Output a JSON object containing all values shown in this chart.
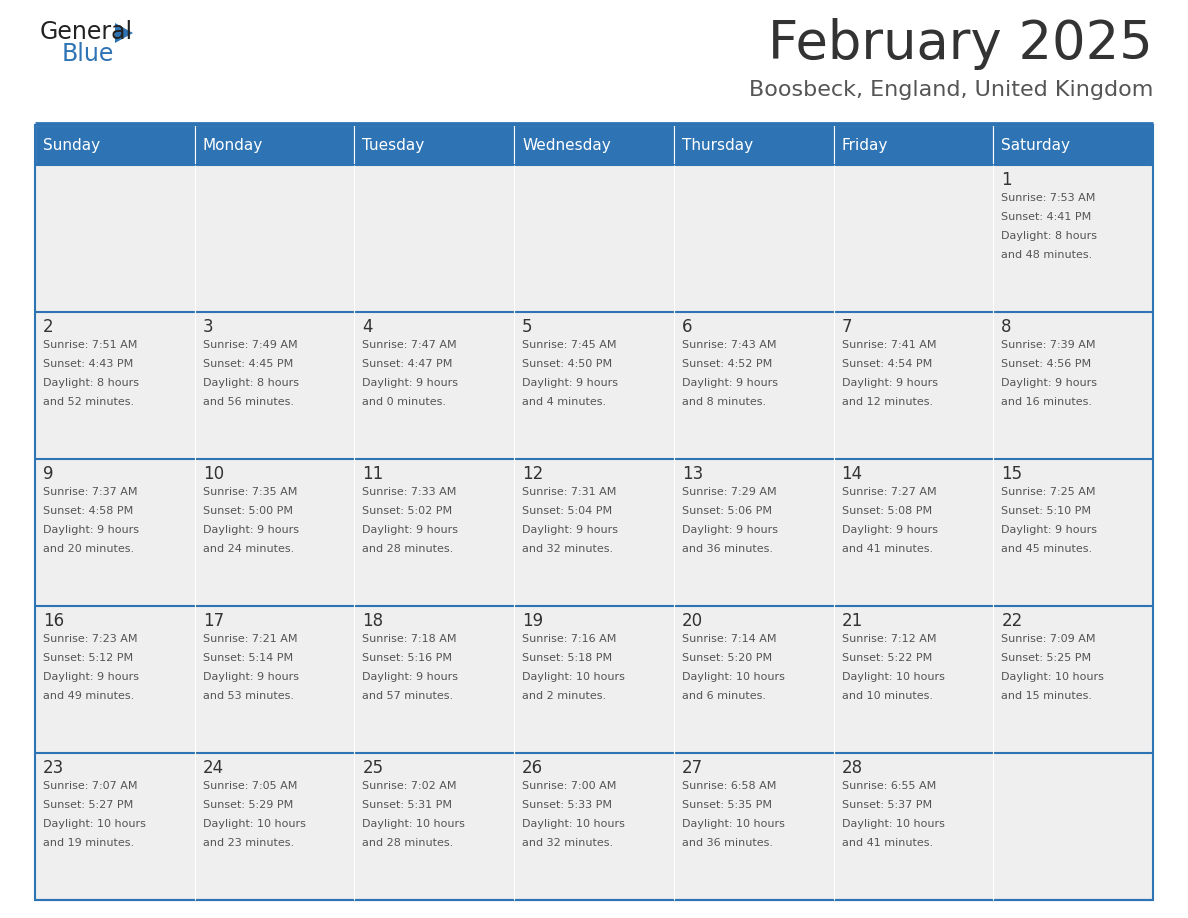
{
  "title": "February 2025",
  "subtitle": "Boosbeck, England, United Kingdom",
  "header_bg": "#2E74B5",
  "header_text_color": "#FFFFFF",
  "cell_bg_light": "#EFEFEF",
  "cell_bg_white": "#FFFFFF",
  "border_color": "#2E74B5",
  "title_color": "#333333",
  "subtitle_color": "#555555",
  "day_number_color": "#333333",
  "cell_text_color": "#555555",
  "days_of_week": [
    "Sunday",
    "Monday",
    "Tuesday",
    "Wednesday",
    "Thursday",
    "Friday",
    "Saturday"
  ],
  "calendar": [
    [
      null,
      null,
      null,
      null,
      null,
      null,
      1
    ],
    [
      2,
      3,
      4,
      5,
      6,
      7,
      8
    ],
    [
      9,
      10,
      11,
      12,
      13,
      14,
      15
    ],
    [
      16,
      17,
      18,
      19,
      20,
      21,
      22
    ],
    [
      23,
      24,
      25,
      26,
      27,
      28,
      null
    ]
  ],
  "cell_data": {
    "1": {
      "sunrise": "7:53 AM",
      "sunset": "4:41 PM",
      "daylight": "8 hours and 48 minutes."
    },
    "2": {
      "sunrise": "7:51 AM",
      "sunset": "4:43 PM",
      "daylight": "8 hours and 52 minutes."
    },
    "3": {
      "sunrise": "7:49 AM",
      "sunset": "4:45 PM",
      "daylight": "8 hours and 56 minutes."
    },
    "4": {
      "sunrise": "7:47 AM",
      "sunset": "4:47 PM",
      "daylight": "9 hours and 0 minutes."
    },
    "5": {
      "sunrise": "7:45 AM",
      "sunset": "4:50 PM",
      "daylight": "9 hours and 4 minutes."
    },
    "6": {
      "sunrise": "7:43 AM",
      "sunset": "4:52 PM",
      "daylight": "9 hours and 8 minutes."
    },
    "7": {
      "sunrise": "7:41 AM",
      "sunset": "4:54 PM",
      "daylight": "9 hours and 12 minutes."
    },
    "8": {
      "sunrise": "7:39 AM",
      "sunset": "4:56 PM",
      "daylight": "9 hours and 16 minutes."
    },
    "9": {
      "sunrise": "7:37 AM",
      "sunset": "4:58 PM",
      "daylight": "9 hours and 20 minutes."
    },
    "10": {
      "sunrise": "7:35 AM",
      "sunset": "5:00 PM",
      "daylight": "9 hours and 24 minutes."
    },
    "11": {
      "sunrise": "7:33 AM",
      "sunset": "5:02 PM",
      "daylight": "9 hours and 28 minutes."
    },
    "12": {
      "sunrise": "7:31 AM",
      "sunset": "5:04 PM",
      "daylight": "9 hours and 32 minutes."
    },
    "13": {
      "sunrise": "7:29 AM",
      "sunset": "5:06 PM",
      "daylight": "9 hours and 36 minutes."
    },
    "14": {
      "sunrise": "7:27 AM",
      "sunset": "5:08 PM",
      "daylight": "9 hours and 41 minutes."
    },
    "15": {
      "sunrise": "7:25 AM",
      "sunset": "5:10 PM",
      "daylight": "9 hours and 45 minutes."
    },
    "16": {
      "sunrise": "7:23 AM",
      "sunset": "5:12 PM",
      "daylight": "9 hours and 49 minutes."
    },
    "17": {
      "sunrise": "7:21 AM",
      "sunset": "5:14 PM",
      "daylight": "9 hours and 53 minutes."
    },
    "18": {
      "sunrise": "7:18 AM",
      "sunset": "5:16 PM",
      "daylight": "9 hours and 57 minutes."
    },
    "19": {
      "sunrise": "7:16 AM",
      "sunset": "5:18 PM",
      "daylight": "10 hours and 2 minutes."
    },
    "20": {
      "sunrise": "7:14 AM",
      "sunset": "5:20 PM",
      "daylight": "10 hours and 6 minutes."
    },
    "21": {
      "sunrise": "7:12 AM",
      "sunset": "5:22 PM",
      "daylight": "10 hours and 10 minutes."
    },
    "22": {
      "sunrise": "7:09 AM",
      "sunset": "5:25 PM",
      "daylight": "10 hours and 15 minutes."
    },
    "23": {
      "sunrise": "7:07 AM",
      "sunset": "5:27 PM",
      "daylight": "10 hours and 19 minutes."
    },
    "24": {
      "sunrise": "7:05 AM",
      "sunset": "5:29 PM",
      "daylight": "10 hours and 23 minutes."
    },
    "25": {
      "sunrise": "7:02 AM",
      "sunset": "5:31 PM",
      "daylight": "10 hours and 28 minutes."
    },
    "26": {
      "sunrise": "7:00 AM",
      "sunset": "5:33 PM",
      "daylight": "10 hours and 32 minutes."
    },
    "27": {
      "sunrise": "6:58 AM",
      "sunset": "5:35 PM",
      "daylight": "10 hours and 36 minutes."
    },
    "28": {
      "sunrise": "6:55 AM",
      "sunset": "5:37 PM",
      "daylight": "10 hours and 41 minutes."
    }
  },
  "logo_general_color": "#222222",
  "logo_blue_color": "#2E74B5",
  "figsize": [
    11.88,
    9.18
  ],
  "dpi": 100
}
